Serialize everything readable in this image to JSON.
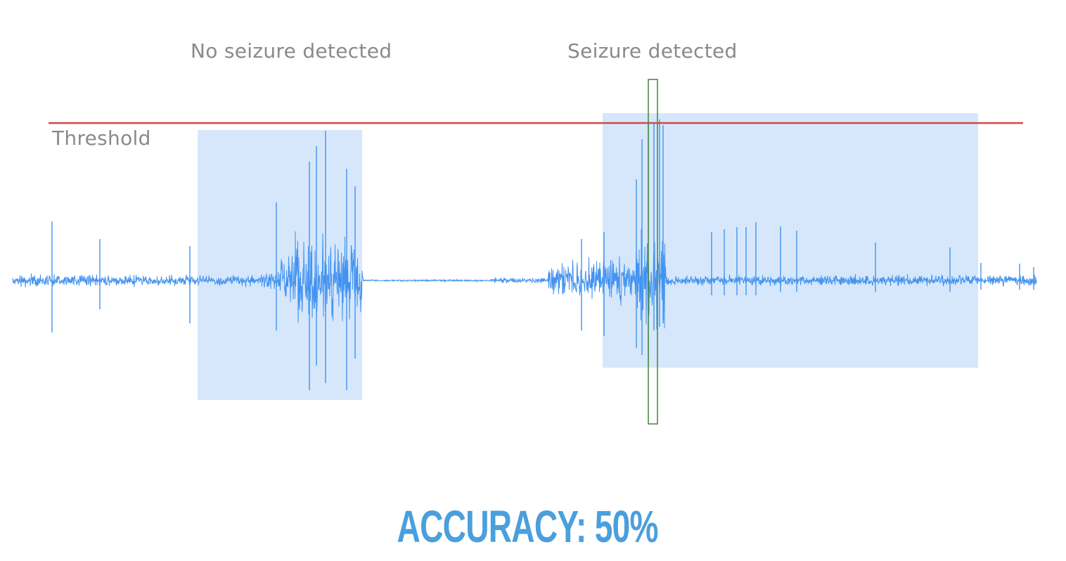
{
  "labels": {
    "no_seizure": "No seizure detected",
    "seizure": "Seizure detected",
    "threshold": "Threshold"
  },
  "accuracy_text": "ACCURACY: 50%",
  "colors": {
    "signal": "#4393f0",
    "window_fill": "#d6e7fb",
    "threshold_line": "#d4464a",
    "detection_marker": "#4f8a45",
    "label_text": "#8a8a8a",
    "accuracy_text": "#4a9fdc"
  }
}
